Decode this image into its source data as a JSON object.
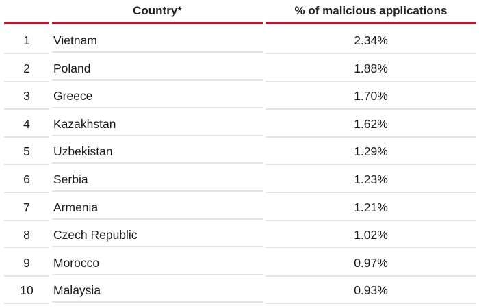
{
  "chart_data": {
    "type": "table",
    "columns": [
      "",
      "Country*",
      "% of malicious applications"
    ],
    "rows": [
      {
        "rank": "1",
        "country": "Vietnam",
        "percent": "2.34%",
        "value": 2.34
      },
      {
        "rank": "2",
        "country": "Poland",
        "percent": "1.88%",
        "value": 1.88
      },
      {
        "rank": "3",
        "country": "Greece",
        "percent": "1.70%",
        "value": 1.7
      },
      {
        "rank": "4",
        "country": "Kazakhstan",
        "percent": "1.62%",
        "value": 1.62
      },
      {
        "rank": "5",
        "country": "Uzbekistan",
        "percent": "1.29%",
        "value": 1.29
      },
      {
        "rank": "6",
        "country": "Serbia",
        "percent": "1.23%",
        "value": 1.23
      },
      {
        "rank": "7",
        "country": "Armenia",
        "percent": "1.21%",
        "value": 1.21
      },
      {
        "rank": "8",
        "country": "Czech Republic",
        "percent": "1.02%",
        "value": 1.02
      },
      {
        "rank": "9",
        "country": "Morocco",
        "percent": "0.97%",
        "value": 0.97
      },
      {
        "rank": "10",
        "country": "Malaysia",
        "percent": "0.93%",
        "value": 0.93
      }
    ]
  },
  "colors": {
    "header_rule": "#c8102e",
    "row_rule": "#e3e3e3"
  }
}
